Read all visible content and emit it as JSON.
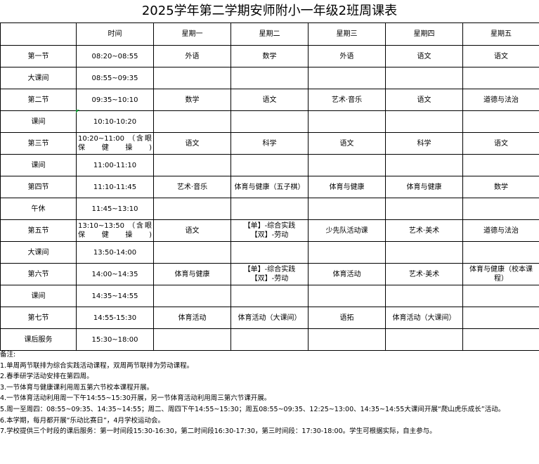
{
  "title": "2025学年第二学期安师附小一年级2班周课表",
  "header": [
    "",
    "时间",
    "星期一",
    "星期二",
    "星期三",
    "星期四",
    "星期五"
  ],
  "rows": [
    {
      "period": "第一节",
      "time": "08:20~08:55",
      "mon": "外语",
      "tue": "数学",
      "wed": "外语",
      "thu": "语文",
      "fri": "语文"
    },
    {
      "period": "大课间",
      "time": "08:55~09:35",
      "mon": "",
      "tue": "",
      "wed": "",
      "thu": "",
      "fri": ""
    },
    {
      "period": "第二节",
      "time": "09:35~10:10",
      "mon": "数学",
      "tue": "语文",
      "wed": "艺术·音乐",
      "thu": "语文",
      "fri": "道德与法治"
    },
    {
      "period": "课间",
      "time": "10:10-10:20",
      "mon": "",
      "tue": "",
      "wed": "",
      "thu": "",
      "fri": ""
    },
    {
      "period": "第三节",
      "time": "10:20~11:00 （含眼保健操)",
      "mon": "语文",
      "tue": "科学",
      "wed": "语文",
      "thu": "科学",
      "fri": "语文"
    },
    {
      "period": "课间",
      "time": "11:00-11:10",
      "mon": "",
      "tue": "",
      "wed": "",
      "thu": "",
      "fri": ""
    },
    {
      "period": "第四节",
      "time": "11:10-11:45",
      "mon": "艺术·音乐",
      "tue": "体育与健康（五子棋）",
      "wed": "体育与健康",
      "thu": "体育与健康",
      "fri": "数学"
    },
    {
      "period": "午休",
      "time": "11:45~13:10",
      "mon": "",
      "tue": "",
      "wed": "",
      "thu": "",
      "fri": ""
    },
    {
      "period": "第五节",
      "time": "13:10~13:50 （含眼保健操)",
      "mon": "语文",
      "tue": "【单】-综合实践 【双】-劳动",
      "wed": "少先队活动课",
      "thu": "艺术·美术",
      "fri": "道德与法治"
    },
    {
      "period": "大课间",
      "time": "13:50-14:00",
      "mon": "",
      "tue": "",
      "wed": "",
      "thu": "",
      "fri": ""
    },
    {
      "period": "第六节",
      "time": "14:00~14:35",
      "mon": "体育与健康",
      "tue": "【单】-综合实践 【双】-劳动",
      "wed": "体育活动",
      "thu": "艺术·美术",
      "fri": "体育与健康（校本课程）"
    },
    {
      "period": "课间",
      "time": "14:35~14:55",
      "mon": "",
      "tue": "",
      "wed": "",
      "thu": "",
      "fri": ""
    },
    {
      "period": "第七节",
      "time": "14:55-15:30",
      "mon": "体育活动",
      "tue": "体育活动（大课间）",
      "wed": "语拓",
      "thu": "体育活动（大课间）",
      "fri": ""
    },
    {
      "period": "课后服务",
      "time": "15:30~18:00",
      "mon": "",
      "tue": "",
      "wed": "",
      "thu": "",
      "fri": ""
    }
  ],
  "notes": [
    "备注:",
    "1.单周两节联排为综合实践活动课程，双周两节联排为劳动课程。",
    "2.春季研学活动安排在第四周。",
    "3.一节体育与健康课利用周五第六节校本课程开展。",
    "4.一节体育活动利用周一下午14:55~15:30开展，另一节体育活动利用周三第六节课开展。",
    "5.周一至周四：08:55~09:35、14:35~14:55；周二、周四下午14:55~15:30；周五08:55~09:35、12:25~13:00、14:35~14:55大课间开展“爬山虎乐成长”活动。",
    "6.本学期，每月都开展“乐动比赛日”，4月学校运动会。",
    "7.学校提供三个时段的课后服务：第一时间段15:30-16:30，第二时间段16:30-17:30，第三时间段：17:30-18:00。学生可根据实际，自主参与。"
  ]
}
